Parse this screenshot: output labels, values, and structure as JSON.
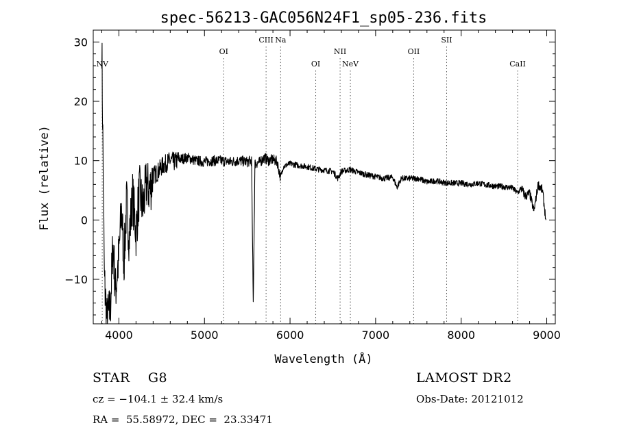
{
  "chart_data": {
    "type": "line",
    "title": "spec-56213-GAC056N24F1_sp05-236.fits",
    "xlabel": "Wavelength (Å)",
    "ylabel": "Flux (relative)",
    "xlim": [
      3700,
      9100
    ],
    "ylim": [
      -17.5,
      32
    ],
    "xticks": [
      4000,
      5000,
      6000,
      7000,
      8000,
      9000
    ],
    "yticks": [
      -10,
      0,
      10,
      20,
      30
    ],
    "ytick_labels": [
      "−10",
      "0",
      "10",
      "20",
      "30"
    ],
    "grid": false,
    "series": [
      {
        "points": [
          [
            3800,
            30
          ],
          [
            3830,
            -10
          ],
          [
            3860,
            -17
          ],
          [
            3900,
            -15
          ],
          [
            3930,
            -4
          ],
          [
            3960,
            -12
          ],
          [
            4000,
            -6
          ],
          [
            4030,
            2
          ],
          [
            4060,
            -7
          ],
          [
            4090,
            3
          ],
          [
            4120,
            -3
          ],
          [
            4160,
            4
          ],
          [
            4200,
            -2
          ],
          [
            4240,
            5
          ],
          [
            4280,
            2
          ],
          [
            4320,
            6
          ],
          [
            4360,
            5
          ],
          [
            4400,
            7.5
          ],
          [
            4450,
            8
          ],
          [
            4500,
            9
          ],
          [
            4550,
            9.5
          ],
          [
            4600,
            10
          ],
          [
            4650,
            9.8
          ],
          [
            4700,
            10.2
          ],
          [
            4800,
            10.5
          ],
          [
            4900,
            10
          ],
          [
            5000,
            9.8
          ],
          [
            5100,
            10
          ],
          [
            5200,
            10
          ],
          [
            5300,
            9.8
          ],
          [
            5400,
            10
          ],
          [
            5500,
            9.8
          ],
          [
            5550,
            10
          ],
          [
            5570,
            -14
          ],
          [
            5590,
            9.5
          ],
          [
            5650,
            9.8
          ],
          [
            5700,
            10.5
          ],
          [
            5750,
            10
          ],
          [
            5800,
            10.2
          ],
          [
            5850,
            9.8
          ],
          [
            5890,
            7
          ],
          [
            5920,
            9
          ],
          [
            6000,
            9.5
          ],
          [
            6100,
            9.2
          ],
          [
            6200,
            9.0
          ],
          [
            6300,
            8.6
          ],
          [
            6400,
            8.4
          ],
          [
            6500,
            8.2
          ],
          [
            6560,
            7.0
          ],
          [
            6600,
            8.2
          ],
          [
            6700,
            8.5
          ],
          [
            6800,
            8.0
          ],
          [
            6900,
            7.6
          ],
          [
            7000,
            7.3
          ],
          [
            7100,
            7.0
          ],
          [
            7200,
            7.2
          ],
          [
            7250,
            5.5
          ],
          [
            7300,
            7.0
          ],
          [
            7400,
            7.0
          ],
          [
            7500,
            7.0
          ],
          [
            7600,
            6.4
          ],
          [
            7700,
            6.6
          ],
          [
            7800,
            6.3
          ],
          [
            7900,
            6.2
          ],
          [
            8000,
            6.2
          ],
          [
            8100,
            6.0
          ],
          [
            8200,
            6.2
          ],
          [
            8300,
            5.9
          ],
          [
            8400,
            5.7
          ],
          [
            8500,
            5.6
          ],
          [
            8600,
            5.4
          ],
          [
            8660,
            4.5
          ],
          [
            8700,
            5.4
          ],
          [
            8750,
            4.0
          ],
          [
            8800,
            4.5
          ],
          [
            8850,
            1.5
          ],
          [
            8900,
            6.0
          ],
          [
            8950,
            5.0
          ],
          [
            8990,
            0
          ]
        ]
      }
    ],
    "annotations": [
      {
        "label": "NV",
        "x": 3805,
        "row": 3
      },
      {
        "label": "OI",
        "x": 5225,
        "row": 2
      },
      {
        "label": "CIII",
        "x": 5720,
        "row": 1
      },
      {
        "label": "Na",
        "x": 5890,
        "row": 1
      },
      {
        "label": "OI",
        "x": 6300,
        "row": 3
      },
      {
        "label": "NII",
        "x": 6585,
        "row": 2
      },
      {
        "label": "NeV",
        "x": 6705,
        "row": 3
      },
      {
        "label": "OII",
        "x": 7445,
        "row": 2
      },
      {
        "label": "SII",
        "x": 7830,
        "row": 1
      },
      {
        "label": "CaII",
        "x": 8660,
        "row": 3
      }
    ],
    "legend": "none"
  },
  "footer": {
    "classification": "STAR    G8",
    "redshift": "cz = −104.1 ± 32.4 km/s",
    "coordinates": "RA =  55.58972, DEC =  23.33471",
    "survey": "LAMOST DR2",
    "obs_date": "Obs-Date: 20121012"
  }
}
